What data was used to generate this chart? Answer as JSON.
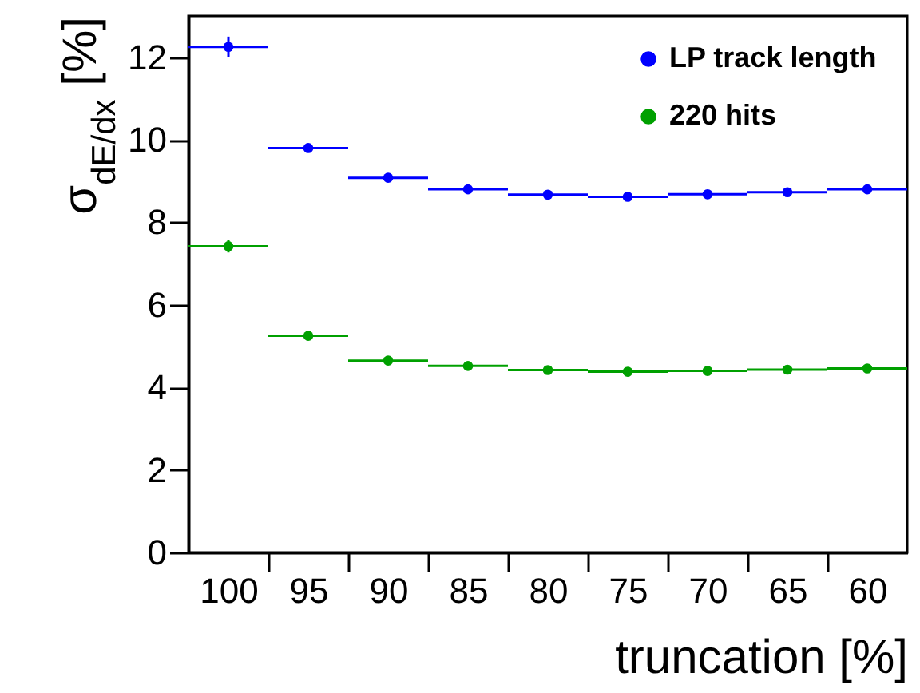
{
  "chart_data": {
    "type": "scatter",
    "xlabel": "truncation [%]",
    "ylabel": "σ$_{dE/dx}$ [%]",
    "x": [
      100,
      95,
      90,
      85,
      80,
      75,
      70,
      65,
      60
    ],
    "xlim": [
      102.5,
      57.5
    ],
    "ylim": [
      0,
      13
    ],
    "xticks": [
      100,
      {
        "value": 97.5,
        "label": null
      },
      95,
      {
        "value": 92.5,
        "label": null
      },
      90,
      {
        "value": 87.5,
        "label": null
      },
      85,
      {
        "value": 82.5,
        "label": null
      },
      80,
      {
        "value": 77.5,
        "label": null
      },
      75,
      {
        "value": 72.5,
        "label": null
      },
      70,
      {
        "value": 67.5,
        "label": null
      },
      65,
      {
        "value": 62.5,
        "label": null
      },
      60
    ],
    "yticks": [
      0,
      2,
      4,
      6,
      8,
      10,
      12
    ],
    "series": [
      {
        "name": "LP track length",
        "color": "#0000ff",
        "values": [
          12.25,
          9.8,
          9.08,
          8.8,
          8.67,
          8.62,
          8.68,
          8.73,
          8.8
        ],
        "errors": [
          0.25,
          0.1,
          0.1,
          0.1,
          0.1,
          0.1,
          0.1,
          0.1,
          0.1
        ],
        "xerrors": [
          2.5,
          2.5,
          2.5,
          2.5,
          2.5,
          2.5,
          2.5,
          2.5,
          2.5
        ]
      },
      {
        "name": "220 hits",
        "color": "#00a000",
        "values": [
          7.42,
          5.25,
          4.65,
          4.52,
          4.42,
          4.38,
          4.4,
          4.43,
          4.46
        ],
        "errors": [
          0.15,
          0.08,
          0.08,
          0.08,
          0.08,
          0.08,
          0.08,
          0.08,
          0.08
        ],
        "xerrors": [
          2.5,
          2.5,
          2.5,
          2.5,
          2.5,
          2.5,
          2.5,
          2.5,
          2.5
        ]
      }
    ],
    "legend": "top right",
    "marker": "circle",
    "grid": false
  }
}
